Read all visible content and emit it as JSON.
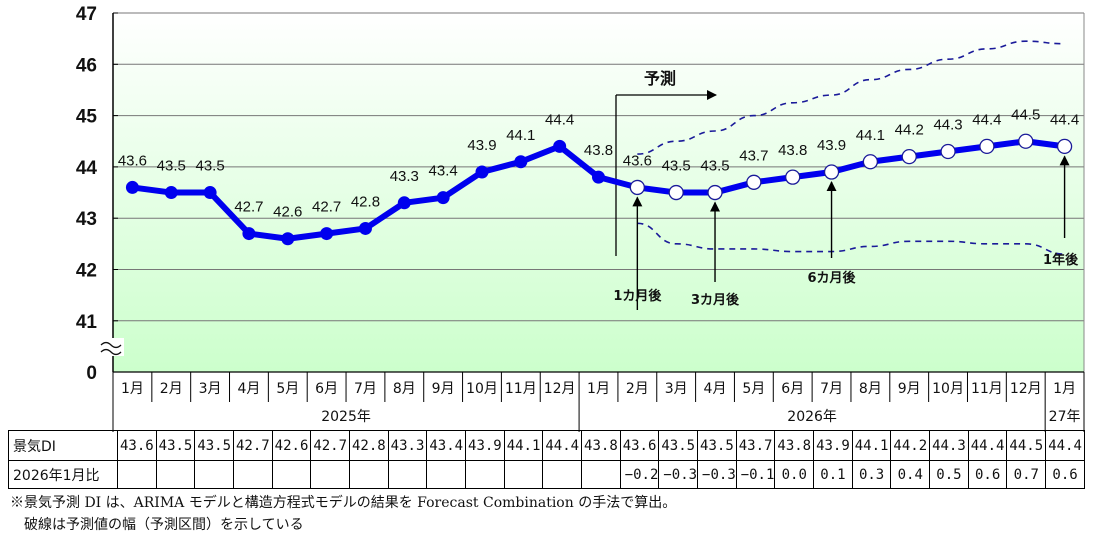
{
  "chart_data": {
    "type": "line",
    "title": "",
    "xlabel": "",
    "ylabel": "",
    "ylim": [
      41,
      47
    ],
    "y_axis_break": true,
    "yticks": [
      "47",
      "46",
      "45",
      "44",
      "43",
      "42",
      "41",
      "0"
    ],
    "grid": true,
    "categories": [
      "1月",
      "2月",
      "3月",
      "4月",
      "5月",
      "6月",
      "7月",
      "8月",
      "9月",
      "10月",
      "11月",
      "12月",
      "1月",
      "2月",
      "3月",
      "4月",
      "5月",
      "6月",
      "7月",
      "8月",
      "9月",
      "10月",
      "11月",
      "12月",
      "1月"
    ],
    "year_groups": [
      {
        "label": "2025年",
        "span": 12
      },
      {
        "label": "2026年",
        "span": 12
      },
      {
        "label": "27年",
        "span": 1
      }
    ],
    "series": [
      {
        "name": "景気DI",
        "values": [
          43.6,
          43.5,
          43.5,
          42.7,
          42.6,
          42.7,
          42.8,
          43.3,
          43.4,
          43.9,
          44.1,
          44.4,
          43.8,
          null,
          null,
          null,
          null,
          null,
          null,
          null,
          null,
          null,
          null,
          null,
          null
        ],
        "color": "#0000ee",
        "marker": "filled"
      },
      {
        "name": "予測",
        "values": [
          null,
          null,
          null,
          null,
          null,
          null,
          null,
          null,
          null,
          null,
          null,
          null,
          43.8,
          43.6,
          43.5,
          43.5,
          43.7,
          43.8,
          43.9,
          44.1,
          44.2,
          44.3,
          44.4,
          44.5,
          44.4
        ],
        "color": "#0000ee",
        "marker": "open"
      },
      {
        "name": "予測区間上限",
        "values": [
          null,
          null,
          null,
          null,
          null,
          null,
          null,
          null,
          null,
          null,
          null,
          null,
          null,
          44.25,
          44.5,
          44.7,
          45.0,
          45.25,
          45.4,
          45.7,
          45.9,
          46.1,
          46.3,
          46.45,
          46.4
        ],
        "color": "#1a1a99",
        "style": "dashed"
      },
      {
        "name": "予測区間下限",
        "values": [
          null,
          null,
          null,
          null,
          null,
          null,
          null,
          null,
          null,
          null,
          null,
          null,
          null,
          42.9,
          42.5,
          42.4,
          42.4,
          42.35,
          42.35,
          42.45,
          42.55,
          42.55,
          42.5,
          42.5,
          42.3
        ],
        "color": "#1a1a99",
        "style": "dashed"
      }
    ],
    "data_labels": [
      "43.6",
      "43.5",
      "43.5",
      "42.7",
      "42.6",
      "42.7",
      "42.8",
      "43.3",
      "43.4",
      "43.9",
      "44.1",
      "44.4",
      "43.8",
      "43.6",
      "43.5",
      "43.5",
      "43.7",
      "43.8",
      "43.9",
      "44.1",
      "44.2",
      "44.3",
      "44.4",
      "44.5",
      "44.4"
    ],
    "annotations": {
      "forecast_label": "予測",
      "arrows": [
        {
          "label": "1カ月後",
          "index": 13
        },
        {
          "label": "3カ月後",
          "index": 15
        },
        {
          "label": "6カ月後",
          "index": 18
        },
        {
          "label": "1年後",
          "index": 24
        }
      ]
    }
  },
  "table": {
    "row_di_label": "景気DI",
    "row_di_values": [
      "43.6",
      "43.5",
      "43.5",
      "42.7",
      "42.6",
      "42.7",
      "42.8",
      "43.3",
      "43.4",
      "43.9",
      "44.1",
      "44.4",
      "43.8",
      "43.6",
      "43.5",
      "43.5",
      "43.7",
      "43.8",
      "43.9",
      "44.1",
      "44.2",
      "44.3",
      "44.4",
      "44.5",
      "44.4"
    ],
    "row_cmp_label": "2026年1月比",
    "row_cmp_values": [
      "",
      "",
      "",
      "",
      "",
      "",
      "",
      "",
      "",
      "",
      "",
      "",
      "",
      "−0.2",
      "−0.3",
      "−0.3",
      "−0.1",
      "0.0",
      "0.1",
      "0.3",
      "0.4",
      "0.5",
      "0.6",
      "0.7",
      "0.6"
    ]
  },
  "notes": {
    "line1": "※景気予測 DI は、ARIMA モデルと構造方程式モデルの結果を Forecast Combination の手法で算出。",
    "line2": "　破線は予測値の幅（予測区間）を示している"
  },
  "colors": {
    "line": "#0000ee",
    "band": "#1a1a99",
    "plot_top": "#ffffff",
    "plot_bottom": "#ccffcc"
  }
}
